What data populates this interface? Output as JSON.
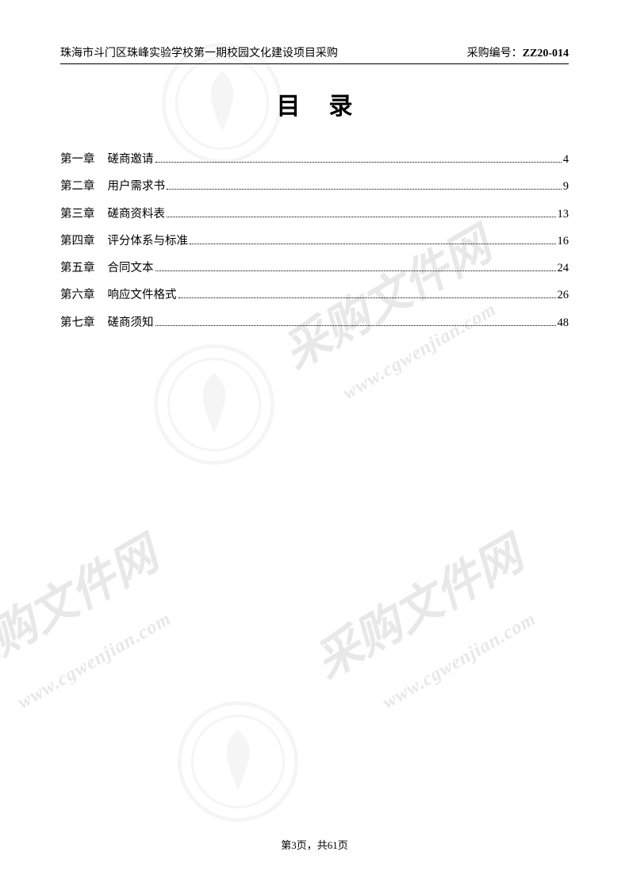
{
  "header": {
    "left": "珠海市斗门区珠峰实验学校第一期校园文化建设项目采购",
    "right_label": "采购编号：",
    "right_code": "ZZ20-014"
  },
  "title": "目录",
  "toc": [
    {
      "chapter": "第一章",
      "title": "磋商邀请",
      "page": "4"
    },
    {
      "chapter": "第二章",
      "title": "用户需求书",
      "page": "9"
    },
    {
      "chapter": "第三章",
      "title": "磋商资料表",
      "page": "13"
    },
    {
      "chapter": "第四章",
      "title": "评分体系与标准",
      "page": "16"
    },
    {
      "chapter": "第五章",
      "title": "合同文本",
      "page": "24"
    },
    {
      "chapter": "第六章",
      "title": "响应文件格式",
      "page": "26"
    },
    {
      "chapter": "第七章",
      "title": "磋商须知",
      "page": "48"
    }
  ],
  "footer": "第3页，共61页",
  "watermarks": {
    "text_cn": "采购文件网",
    "text_url": "www.cgwenjian.com",
    "color": "#e8e8e8",
    "logo_color": "#d0d0d0"
  }
}
